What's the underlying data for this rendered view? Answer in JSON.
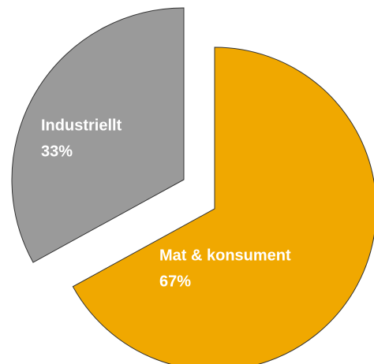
{
  "chart_data": {
    "type": "pie",
    "categories": [
      "Mat & konsument",
      "Industriellt"
    ],
    "values": [
      67,
      33
    ],
    "value_labels": [
      "67%",
      "33%"
    ],
    "colors": [
      "#f0a800",
      "#9a9a9a"
    ]
  }
}
